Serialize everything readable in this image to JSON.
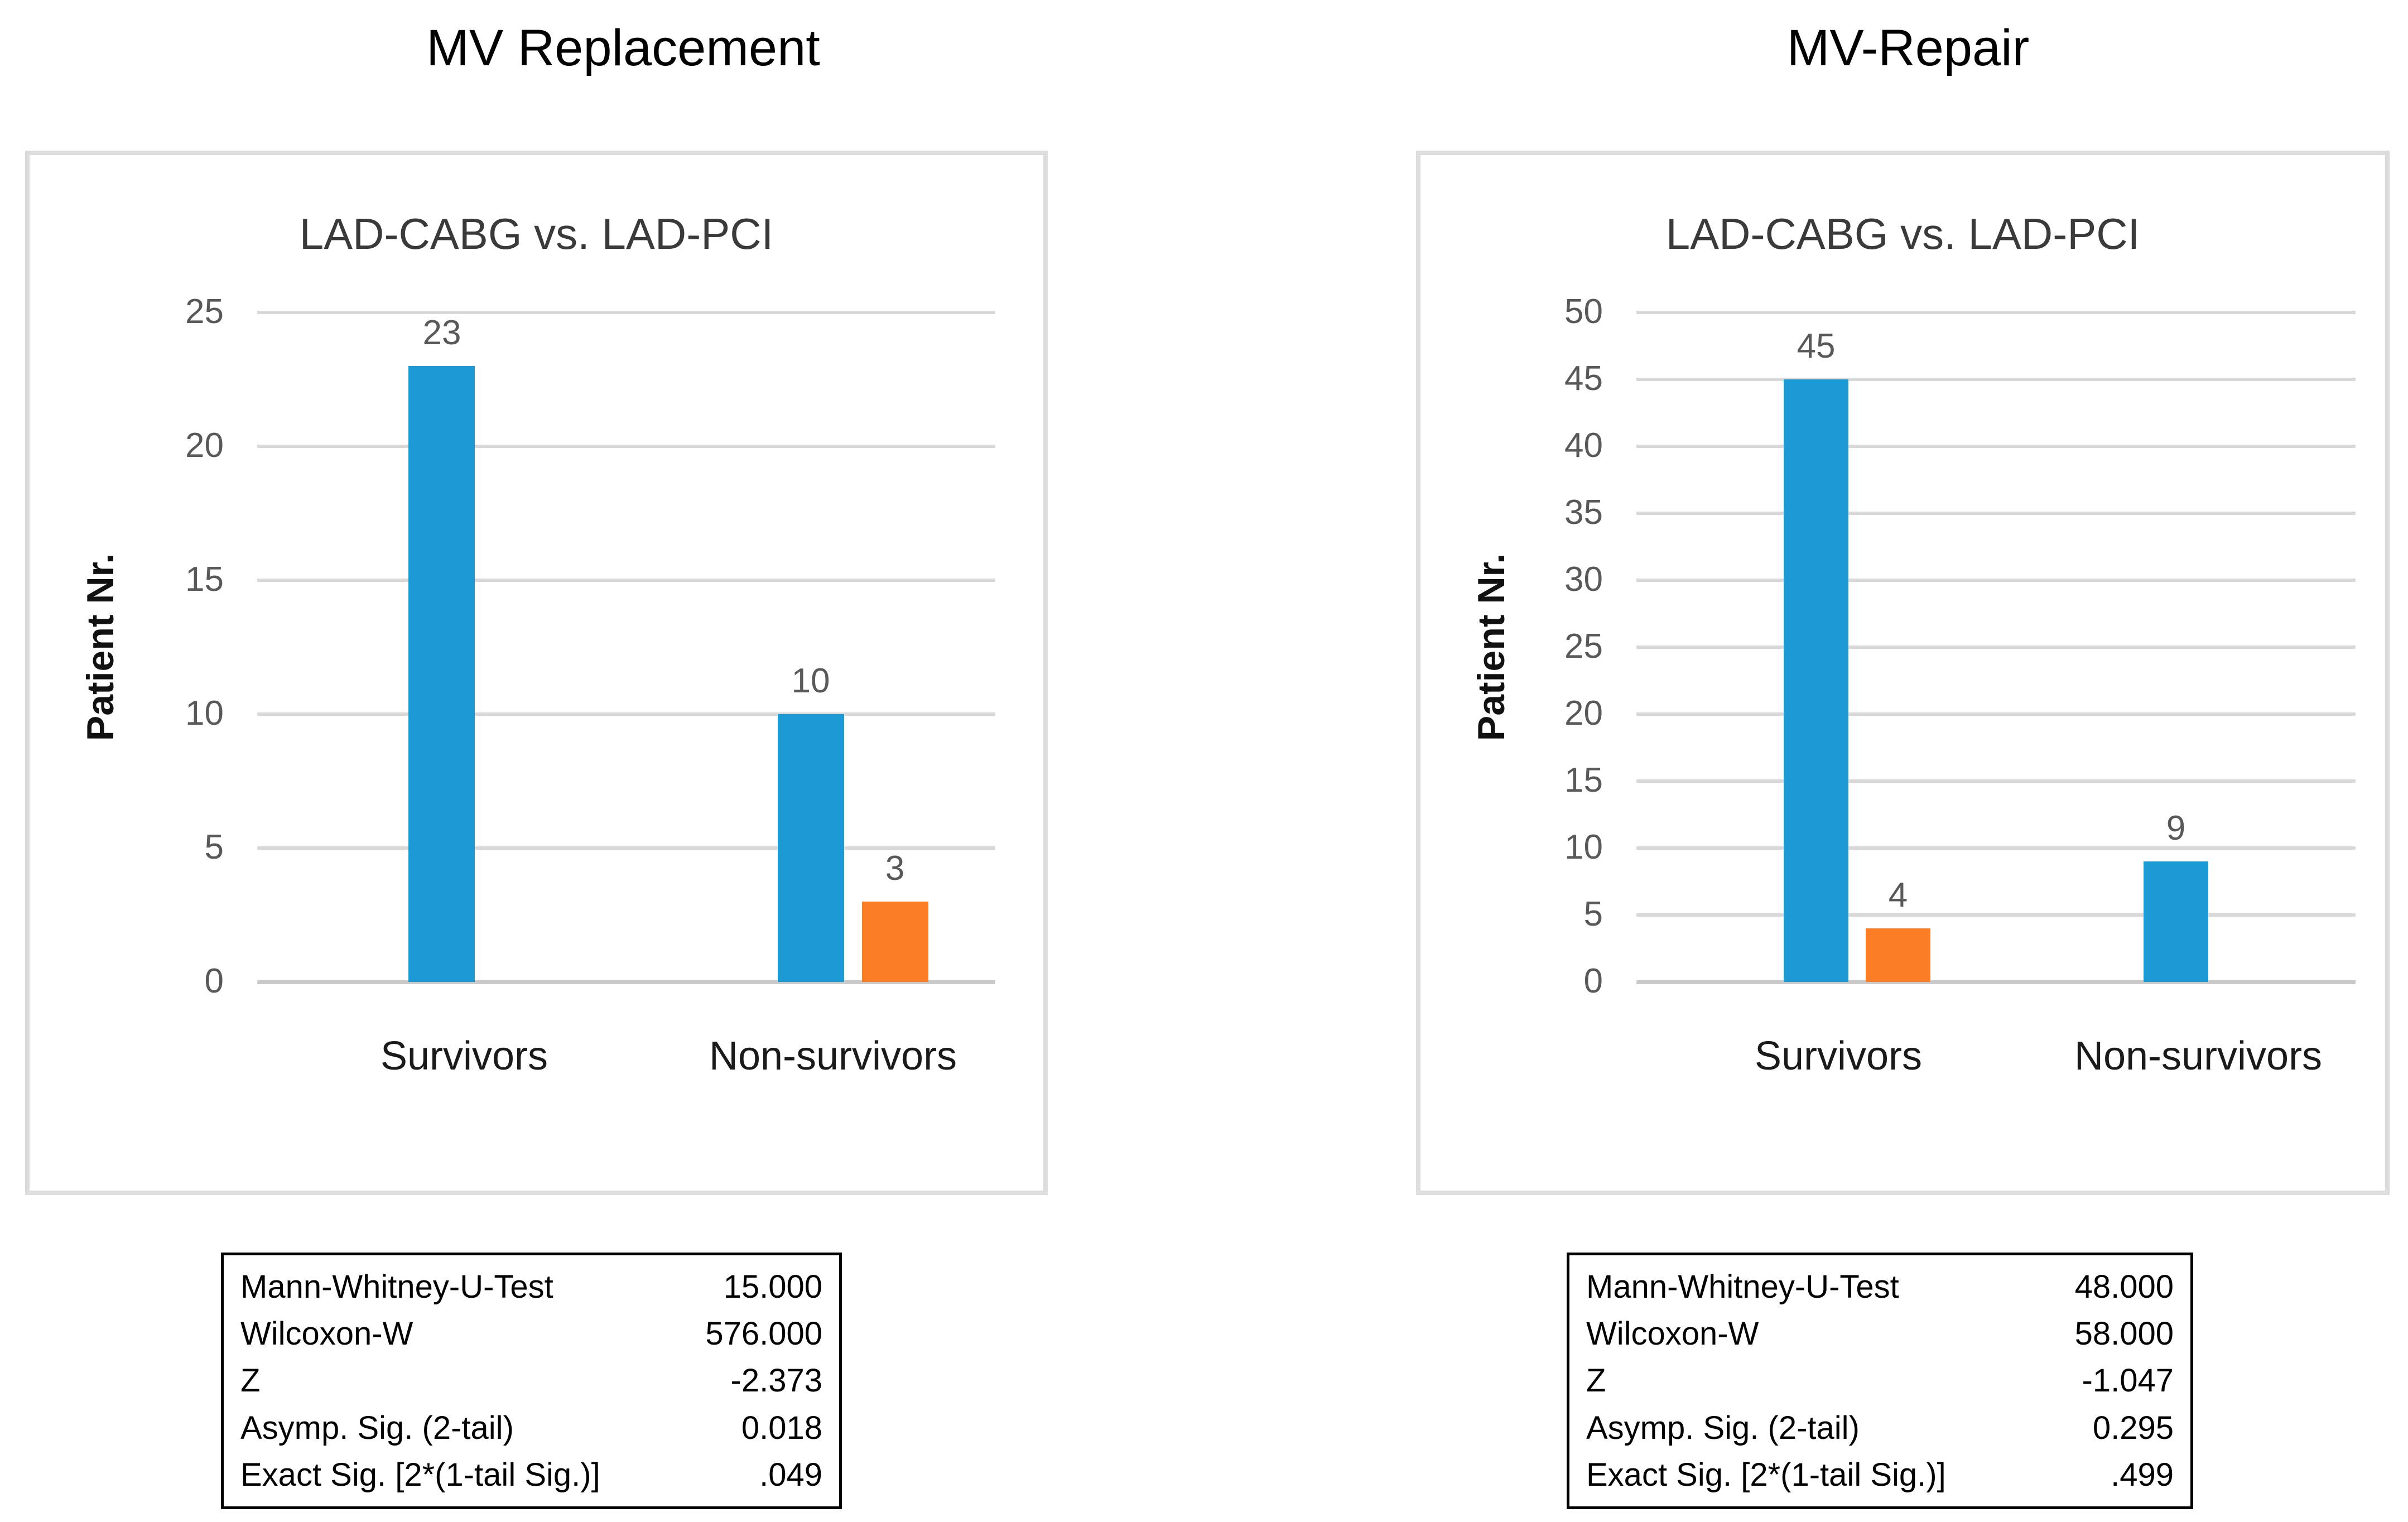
{
  "palette": {
    "bar_blue": "#1B9AD6",
    "bar_orange": "#FB7D26",
    "gridline": "#d9d9d9",
    "zero_line": "#c9c9c9",
    "tick_text": "#595959"
  },
  "panels": [
    {
      "title": "MV Replacement",
      "chart_data": {
        "type": "bar",
        "title": "LAD-CABG vs. LAD-PCI",
        "xlabel": "",
        "ylabel": "Patient Nr.",
        "categories": [
          "Survivors",
          "Non-survivors"
        ],
        "series": [
          {
            "name": "series-blue",
            "color": "#1B9AD6",
            "values": [
              23,
              10
            ]
          },
          {
            "name": "series-orange",
            "color": "#FB7D26",
            "values": [
              null,
              3
            ]
          }
        ],
        "data_labels": [
          [
            "23",
            "10"
          ],
          [
            null,
            "3"
          ]
        ],
        "ylim": [
          0,
          25
        ],
        "yticks": [
          0,
          5,
          10,
          15,
          20,
          25
        ],
        "grid": true,
        "legend": "none"
      },
      "stats_table": {
        "rows": [
          {
            "label": "Mann-Whitney-U-Test",
            "value": "15.000"
          },
          {
            "label": "Wilcoxon-W",
            "value": "576.000"
          },
          {
            "label": "Z",
            "value": "-2.373"
          },
          {
            "label": "Asymp. Sig. (2-tail)",
            "value": "0.018"
          },
          {
            "label": "Exact Sig. [2*(1-tail Sig.)]",
            "value": ".049"
          }
        ]
      }
    },
    {
      "title": "MV-Repair",
      "chart_data": {
        "type": "bar",
        "title": "LAD-CABG vs. LAD-PCI",
        "xlabel": "",
        "ylabel": "Patient Nr.",
        "categories": [
          "Survivors",
          "Non-survivors"
        ],
        "series": [
          {
            "name": "series-blue",
            "color": "#1B9AD6",
            "values": [
              45,
              9
            ]
          },
          {
            "name": "series-orange",
            "color": "#FB7D26",
            "values": [
              4,
              null
            ]
          }
        ],
        "data_labels": [
          [
            "45",
            "9"
          ],
          [
            "4",
            null
          ]
        ],
        "ylim": [
          0,
          50
        ],
        "yticks": [
          0,
          5,
          10,
          15,
          20,
          25,
          30,
          35,
          40,
          45,
          50
        ],
        "grid": true,
        "legend": "none"
      },
      "stats_table": {
        "rows": [
          {
            "label": "Mann-Whitney-U-Test",
            "value": "48.000"
          },
          {
            "label": "Wilcoxon-W",
            "value": "58.000"
          },
          {
            "label": "Z",
            "value": "-1.047"
          },
          {
            "label": "Asymp. Sig. (2-tail)",
            "value": "0.295"
          },
          {
            "label": "Exact Sig. [2*(1-tail Sig.)]",
            "value": ".499"
          }
        ]
      }
    }
  ]
}
